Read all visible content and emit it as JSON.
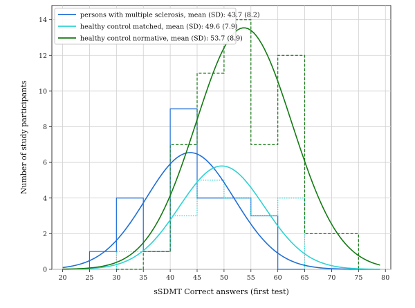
{
  "chart_data": {
    "type": "line",
    "title": "",
    "xlabel": "sSDMT Correct answers (first test)",
    "ylabel": "Number of study participants",
    "xlim": [
      18,
      81
    ],
    "ylim": [
      0,
      14.8
    ],
    "xticks": [
      20,
      25,
      30,
      35,
      40,
      45,
      50,
      55,
      60,
      65,
      70,
      75,
      80
    ],
    "yticks": [
      0,
      2,
      4,
      6,
      8,
      10,
      12,
      14
    ],
    "grid": true,
    "legend_position": "top-left",
    "series": [
      {
        "name": "persons with multiple sclerosis, mean (SD): 43.7 (8.2)",
        "color": "#1f6fd6",
        "linestyle": "solid",
        "mean": 43.7,
        "sd": 8.2,
        "curve_peak": 6.55,
        "histogram": {
          "edges": [
            25,
            30,
            35,
            40,
            45,
            50,
            55,
            60,
            65
          ],
          "counts": [
            1,
            4,
            1,
            9,
            4,
            4,
            3,
            0
          ]
        }
      },
      {
        "name": "healthy control matched, mean (SD): 49.6 (7.9)",
        "color": "#2ed3d3",
        "linestyle": "dotted",
        "mean": 49.6,
        "sd": 7.9,
        "curve_peak": 5.8,
        "histogram": {
          "edges": [
            30,
            35,
            40,
            45,
            50,
            55,
            60,
            65
          ],
          "counts": [
            1,
            1,
            3,
            5,
            4,
            3,
            4
          ]
        }
      },
      {
        "name": "healthy control normative, mean (SD): 53.7 (8.9)",
        "color": "#137a13",
        "linestyle": "dashed",
        "mean": 53.7,
        "sd": 8.9,
        "curve_peak": 13.55,
        "histogram": {
          "edges": [
            30,
            35,
            40,
            45,
            50,
            55,
            60,
            65,
            70,
            75
          ],
          "counts": [
            0,
            1,
            7,
            11,
            14,
            7,
            12,
            2,
            2
          ]
        }
      }
    ]
  }
}
